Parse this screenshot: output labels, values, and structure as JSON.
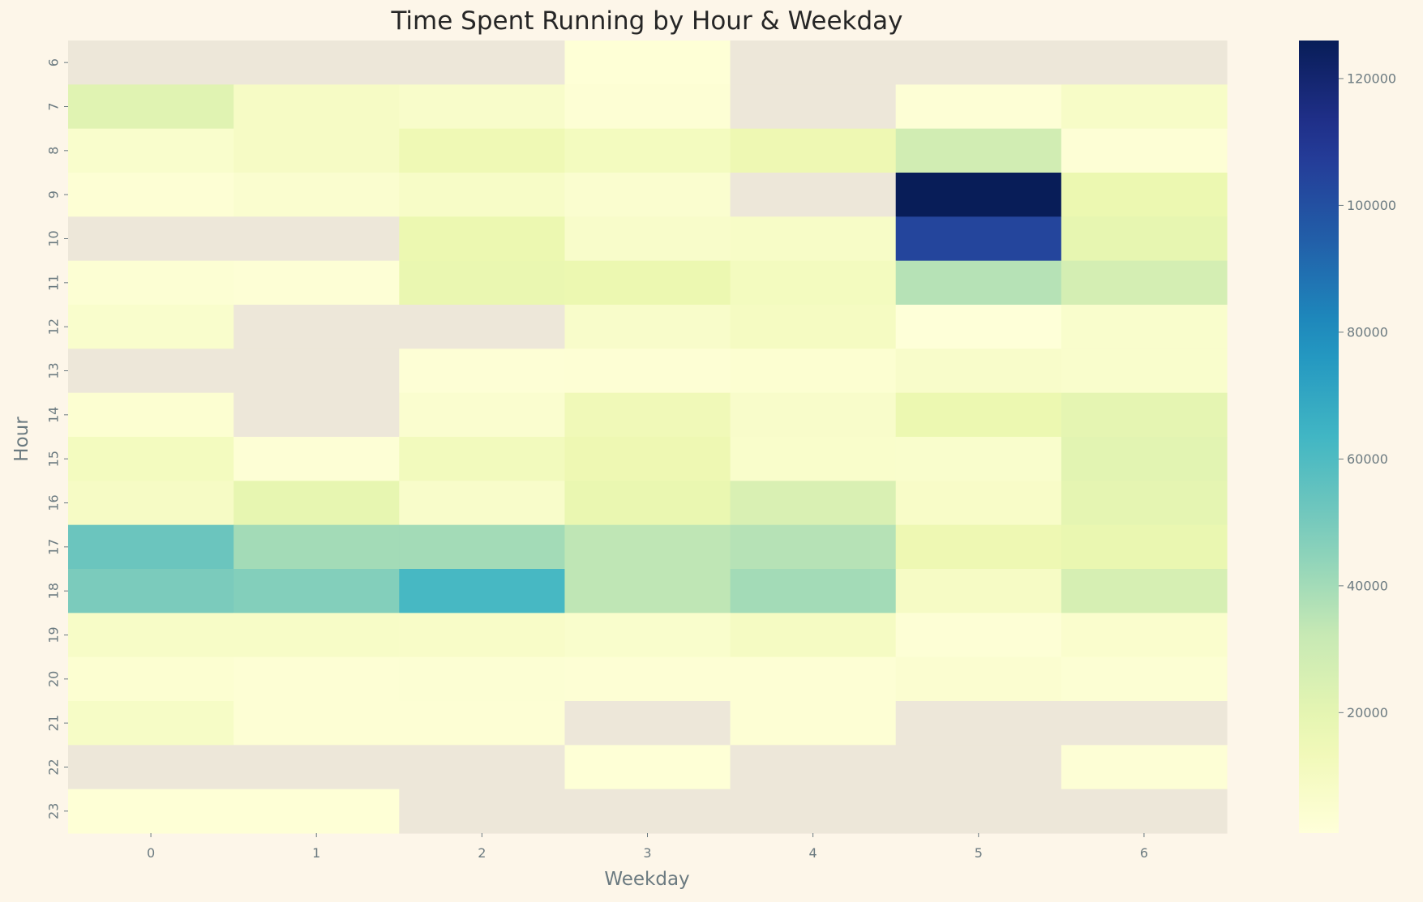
{
  "chart_data": {
    "type": "heatmap",
    "title": "Time Spent Running by Hour & Weekday",
    "xlabel": "Weekday",
    "ylabel": "Hour",
    "x_categories": [
      "0",
      "1",
      "2",
      "3",
      "4",
      "5",
      "6"
    ],
    "y_categories": [
      "6",
      "7",
      "8",
      "9",
      "10",
      "11",
      "12",
      "13",
      "14",
      "15",
      "16",
      "17",
      "18",
      "19",
      "20",
      "21",
      "22",
      "23"
    ],
    "values": [
      [
        null,
        null,
        null,
        2000,
        null,
        null,
        null
      ],
      [
        22000,
        9000,
        7000,
        3000,
        null,
        2500,
        8000
      ],
      [
        6000,
        9000,
        15000,
        11000,
        16000,
        28000,
        2500
      ],
      [
        3000,
        5000,
        8000,
        5000,
        null,
        126000,
        17000
      ],
      [
        null,
        null,
        17000,
        7000,
        8000,
        104000,
        19000
      ],
      [
        3500,
        2500,
        18000,
        17000,
        11000,
        36000,
        27000
      ],
      [
        6000,
        null,
        null,
        7000,
        10000,
        1500,
        6000
      ],
      [
        null,
        null,
        2500,
        3000,
        4000,
        7000,
        6000
      ],
      [
        4000,
        null,
        5000,
        14000,
        7000,
        17000,
        20000
      ],
      [
        11000,
        2500,
        12000,
        16000,
        6500,
        6000,
        21000
      ],
      [
        9000,
        19000,
        7000,
        18000,
        25000,
        7500,
        20000
      ],
      [
        53000,
        40000,
        40000,
        34000,
        36000,
        16000,
        18000
      ],
      [
        49000,
        47000,
        62000,
        34000,
        40000,
        9000,
        26000
      ],
      [
        8000,
        8000,
        7500,
        6000,
        9500,
        2500,
        5500
      ],
      [
        4000,
        3000,
        3500,
        3000,
        3000,
        4500,
        3500
      ],
      [
        8500,
        3000,
        3000,
        null,
        3000,
        null,
        null
      ],
      [
        null,
        null,
        null,
        2000,
        null,
        null,
        2500
      ],
      [
        2000,
        2000,
        null,
        null,
        null,
        null,
        null
      ]
    ],
    "missing_color": "#ede7d9",
    "colormap": "YlGnBu",
    "colorbar": {
      "min": 1000,
      "max": 126000,
      "ticks": [
        "20000",
        "40000",
        "60000",
        "80000",
        "100000",
        "120000"
      ]
    }
  }
}
